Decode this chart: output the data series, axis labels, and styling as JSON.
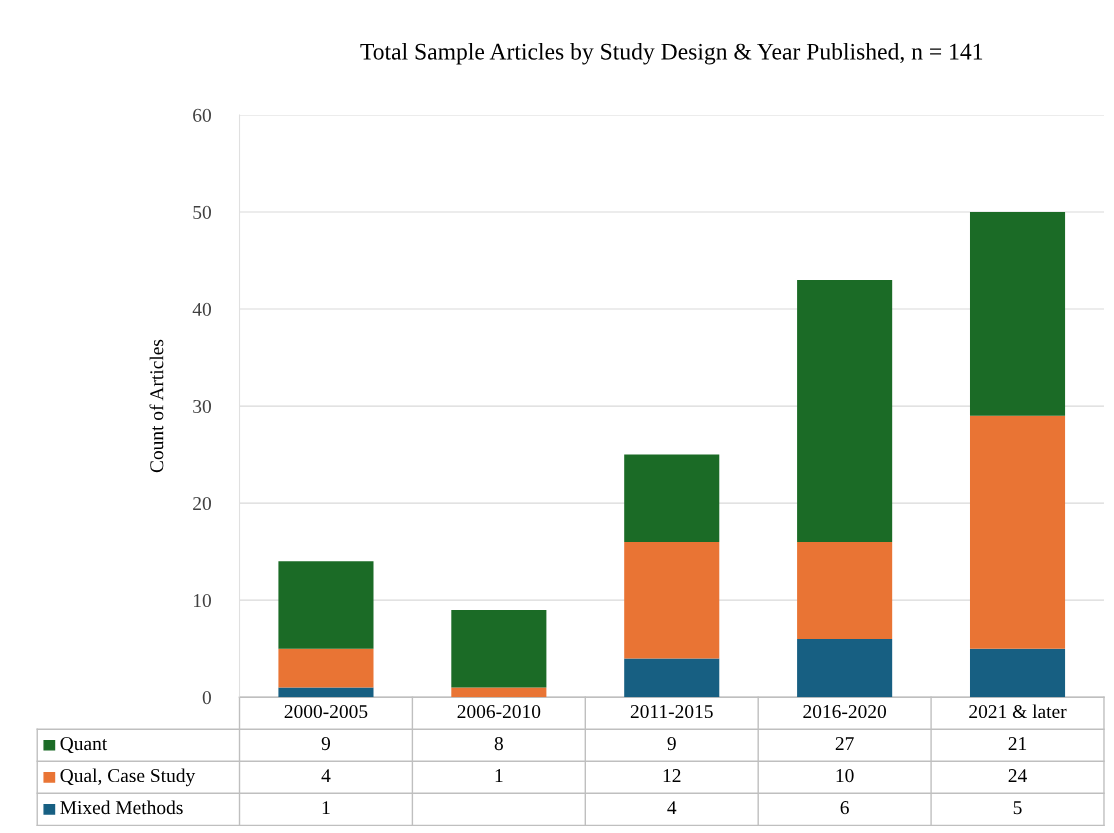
{
  "chart_data": {
    "type": "bar",
    "title": "Total Sample Articles by Study Design & Year Published, n = 141",
    "ylabel": "Count of Articles",
    "categories": [
      "2000-2005",
      "2006-2010",
      "2011-2015",
      "2016-2020",
      "2021 & later"
    ],
    "series": [
      {
        "name": "Mixed Methods",
        "color": "#175f82",
        "values": [
          1,
          null,
          4,
          6,
          5
        ]
      },
      {
        "name": "Qual, Case Study",
        "color": "#e97434",
        "values": [
          4,
          1,
          12,
          10,
          24
        ]
      },
      {
        "name": "Quant",
        "color": "#1b6b26",
        "values": [
          9,
          8,
          9,
          27,
          21
        ]
      }
    ],
    "stacked": true,
    "ylim": [
      0,
      60
    ],
    "yticks": [
      0,
      10,
      20,
      30,
      40,
      50,
      60
    ],
    "grid": "y",
    "data_labels": true,
    "legend": "bottom left"
  }
}
